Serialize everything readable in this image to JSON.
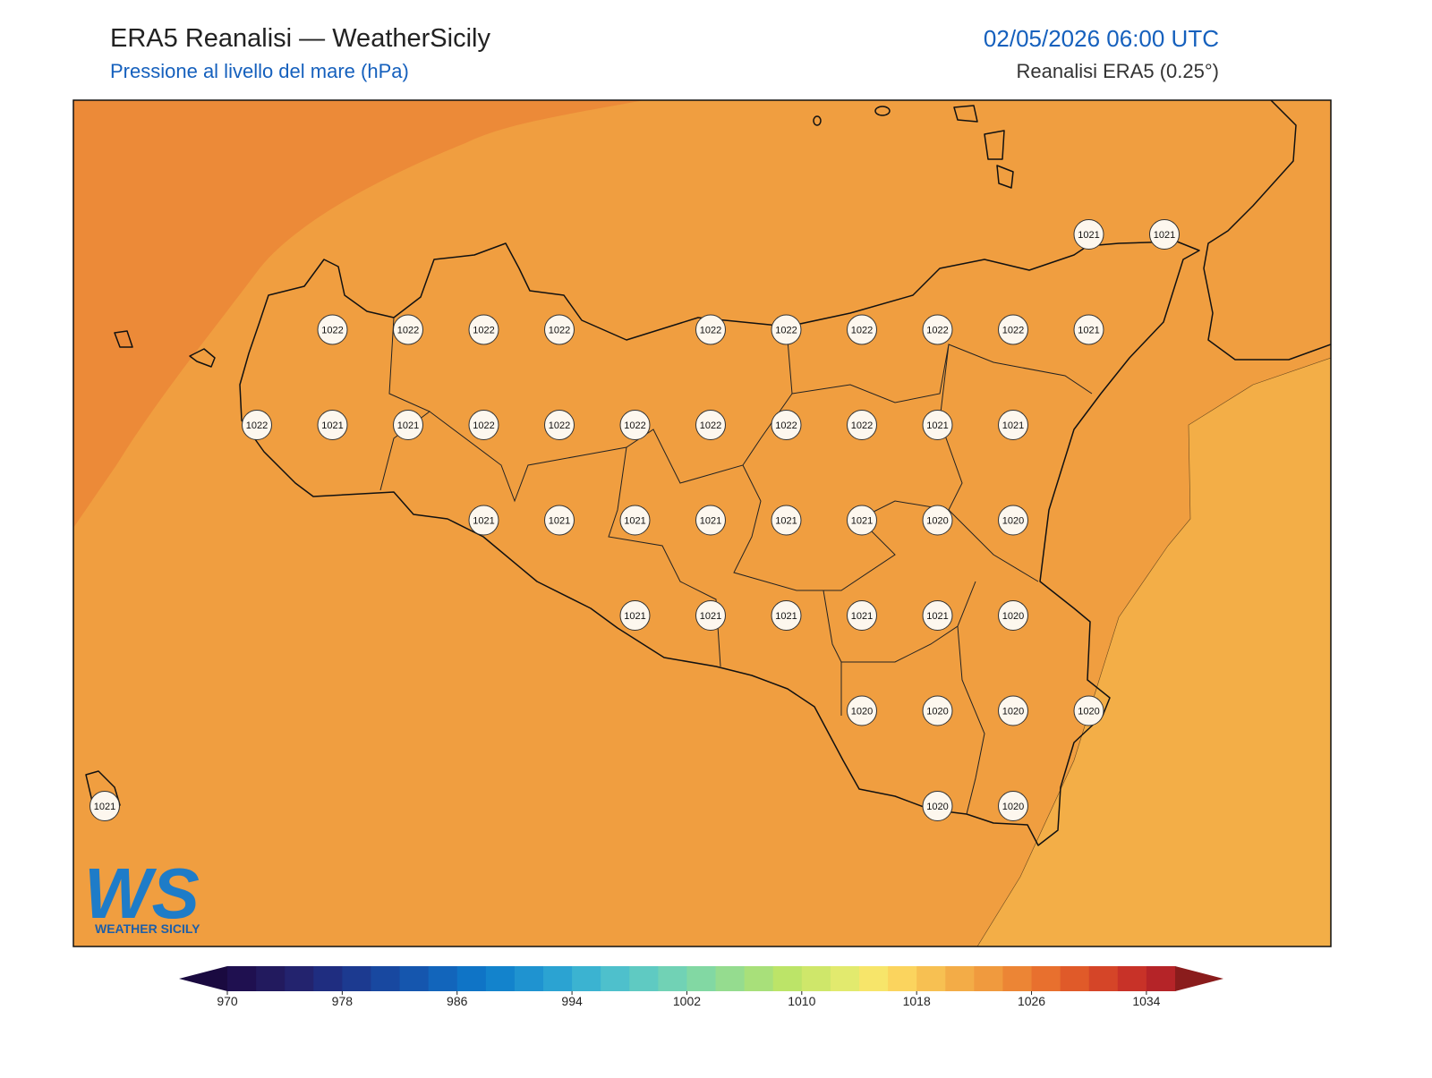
{
  "header": {
    "title": "ERA5 Reanalisi — WeatherSicily",
    "subtitle": "Pressione al livello del mare (hPa)",
    "datetime": "02/05/2026 06:00 UTC",
    "source": "Reanalisi ERA5 (0.25°)"
  },
  "station_values": [
    1021,
    1021,
    1022,
    1022,
    1022,
    1022,
    1022,
    1022,
    1022,
    1022,
    1022,
    1021,
    1022,
    1021,
    1021,
    1022,
    1022,
    1022,
    1022,
    1022,
    1022,
    1021,
    1021,
    1021,
    1021,
    1021,
    1021,
    1021,
    1021,
    1020,
    1020,
    1021,
    1021,
    1021,
    1021,
    1021,
    1020,
    1020,
    1020,
    1020,
    1020,
    1021,
    1020,
    1020
  ],
  "colorbar": {
    "ticks": [
      970,
      978,
      986,
      994,
      1002,
      1010,
      1018,
      1026,
      1034
    ],
    "levels": [
      970,
      972,
      974,
      976,
      978,
      980,
      982,
      984,
      986,
      988,
      990,
      992,
      994,
      996,
      998,
      1000,
      1002,
      1004,
      1006,
      1008,
      1010,
      1012,
      1014,
      1016,
      1018,
      1020,
      1022,
      1024,
      1026,
      1028,
      1030,
      1032,
      1034,
      1036
    ],
    "colors": [
      "#1f1050",
      "#221a5e",
      "#23236e",
      "#1f2d80",
      "#1c3a90",
      "#1848a0",
      "#1556ae",
      "#1265bb",
      "#0f74c6",
      "#1383cc",
      "#1f93d0",
      "#2ba3d2",
      "#3bb3d1",
      "#4ec0cc",
      "#5fcac2",
      "#71d2b5",
      "#82d8a3",
      "#95dc8f",
      "#a8e07a",
      "#bce468",
      "#cfe76a",
      "#e2ea6e",
      "#f7e56a",
      "#fbd45e",
      "#f7c052",
      "#f3ac47",
      "#f09a3e",
      "#ec8535",
      "#e8702e",
      "#e05a29",
      "#d54528",
      "#c83228",
      "#b52428"
    ],
    "under_color": "#1a0a40",
    "over_color": "#8a1c1c"
  },
  "logo": {
    "mark": "WS",
    "text": "WEATHER SICILY"
  }
}
